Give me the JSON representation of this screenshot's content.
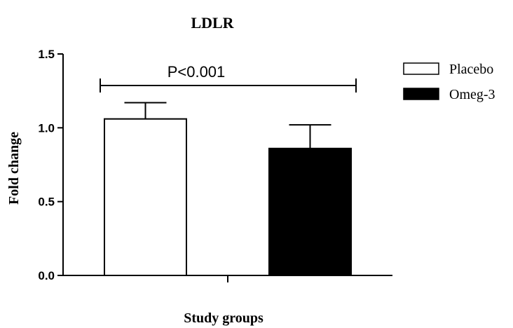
{
  "chart_data": {
    "type": "bar",
    "title": "LDLR",
    "xlabel": "Study groups",
    "ylabel": "Fold change",
    "ylim": [
      0,
      1.5
    ],
    "yticks": [
      "0.0",
      "0.5",
      "1.0",
      "1.5"
    ],
    "grid": false,
    "legend_position": "right",
    "series": [
      {
        "name": "Placebo",
        "value": 1.06,
        "error": 0.11,
        "fill": "#ffffff",
        "stroke": "#000000"
      },
      {
        "name": "Omeg-3",
        "value": 0.86,
        "error": 0.16,
        "fill": "#000000",
        "stroke": "#000000"
      }
    ],
    "annotation": "P<0.001"
  }
}
